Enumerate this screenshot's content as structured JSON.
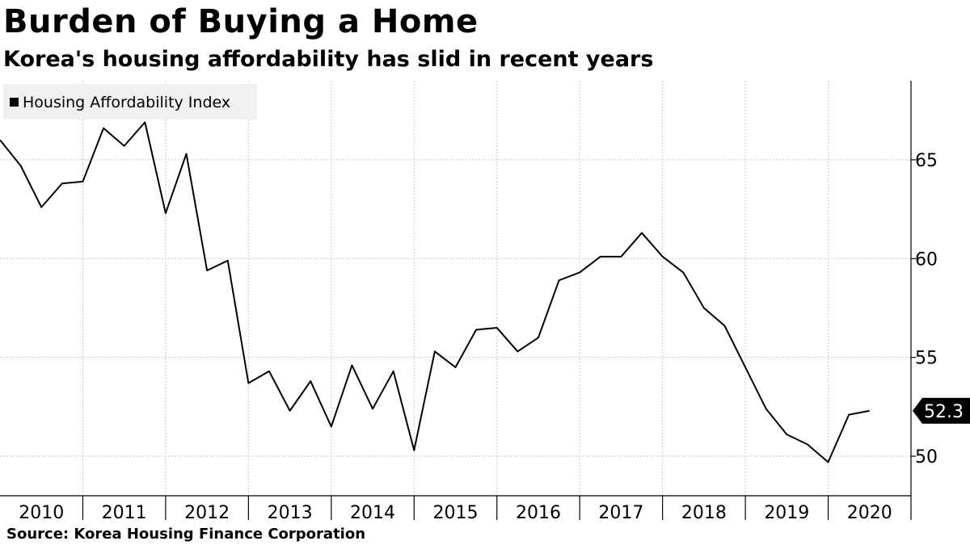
{
  "title": "Burden of Buying a Home",
  "subtitle": "Korea's housing affordability has slid in recent years",
  "source": "Source: Korea Housing Finance Corporation",
  "chart_data": {
    "type": "line",
    "legend_position": "top-left",
    "grid": true,
    "ylim": [
      48,
      69
    ],
    "y_ticks": [
      50,
      55,
      60,
      65
    ],
    "y_axis_side": "right",
    "xlim": [
      2010,
      2021.0
    ],
    "year_labels": [
      "2010",
      "2011",
      "2012",
      "2013",
      "2014",
      "2015",
      "2016",
      "2017",
      "2018",
      "2019",
      "2020"
    ],
    "last_value_label": "52.3",
    "colors": {
      "line": "#000000",
      "grid": "#c8c8c8",
      "legend_bg": "#f0f0f0",
      "label_bg": "#000000"
    },
    "series": [
      {
        "name": "Housing Affordability Index",
        "x": [
          "2010 Q1",
          "2010 Q2",
          "2010 Q3",
          "2010 Q4",
          "2011 Q1",
          "2011 Q2",
          "2011 Q3",
          "2011 Q4",
          "2012 Q1",
          "2012 Q2",
          "2012 Q3",
          "2012 Q4",
          "2013 Q1",
          "2013 Q2",
          "2013 Q3",
          "2013 Q4",
          "2014 Q1",
          "2014 Q2",
          "2014 Q3",
          "2014 Q4",
          "2015 Q1",
          "2015 Q2",
          "2015 Q3",
          "2015 Q4",
          "2016 Q1",
          "2016 Q2",
          "2016 Q3",
          "2016 Q4",
          "2017 Q1",
          "2017 Q2",
          "2017 Q3",
          "2017 Q4",
          "2018 Q1",
          "2018 Q2",
          "2018 Q3",
          "2018 Q4",
          "2019 Q1",
          "2019 Q2",
          "2019 Q3",
          "2019 Q4",
          "2020 Q1",
          "2020 Q2",
          "2020 Q3"
        ],
        "values": [
          66.0,
          64.7,
          62.6,
          63.8,
          63.9,
          66.6,
          65.7,
          66.9,
          62.3,
          65.3,
          59.4,
          59.9,
          53.7,
          54.3,
          52.3,
          53.8,
          51.5,
          54.6,
          52.4,
          54.3,
          50.3,
          55.3,
          54.5,
          56.4,
          56.5,
          55.3,
          56.0,
          58.9,
          59.3,
          60.1,
          60.1,
          61.3,
          60.1,
          59.3,
          57.5,
          56.6,
          54.5,
          52.4,
          51.1,
          50.6,
          49.7,
          52.1,
          52.3
        ]
      }
    ]
  }
}
